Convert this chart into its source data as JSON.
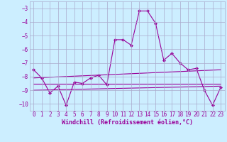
{
  "xlabel": "Windchill (Refroidissement éolien,°C)",
  "background_color": "#cceeff",
  "grid_color": "#aaaacc",
  "line_color": "#990099",
  "ylim": [
    -10.5,
    -2.5
  ],
  "xlim": [
    -0.5,
    23.5
  ],
  "yticks": [
    -10,
    -9,
    -8,
    -7,
    -6,
    -5,
    -4,
    -3
  ],
  "xticks": [
    0,
    1,
    2,
    3,
    4,
    5,
    6,
    7,
    8,
    9,
    10,
    11,
    12,
    13,
    14,
    15,
    16,
    17,
    18,
    19,
    20,
    21,
    22,
    23
  ],
  "main_line": [
    -7.5,
    -8.1,
    -9.2,
    -8.7,
    -10.1,
    -8.4,
    -8.5,
    -8.1,
    -7.9,
    -8.6,
    -5.3,
    -5.3,
    -5.7,
    -3.2,
    -3.2,
    -4.1,
    -6.8,
    -6.3,
    -7.0,
    -7.5,
    -7.4,
    -9.0,
    -10.1,
    -8.8
  ],
  "reg_line1_x": [
    0,
    23
  ],
  "reg_line1_y": [
    -8.1,
    -7.5
  ],
  "reg_line2_x": [
    0,
    23
  ],
  "reg_line2_y": [
    -8.55,
    -8.55
  ],
  "reg_line3_x": [
    0,
    23
  ],
  "reg_line3_y": [
    -9.0,
    -8.7
  ],
  "tick_fontsize": 5.5,
  "label_fontsize": 6.0
}
